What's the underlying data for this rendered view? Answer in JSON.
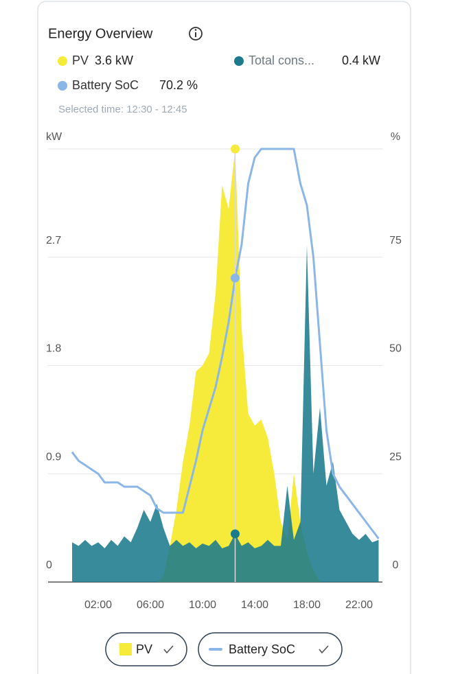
{
  "title": "Energy Overview",
  "selection_label": "Selected time: 12:30 - 12:45",
  "chart_data": {
    "type": "area",
    "y_unit": "kW",
    "y2_unit": "%",
    "x": [
      "00:00",
      "00:30",
      "01:00",
      "01:30",
      "02:00",
      "02:30",
      "03:00",
      "03:30",
      "04:00",
      "04:30",
      "05:00",
      "05:30",
      "06:00",
      "06:30",
      "07:00",
      "07:30",
      "08:00",
      "08:30",
      "09:00",
      "09:30",
      "10:00",
      "10:30",
      "11:00",
      "11:30",
      "12:00",
      "12:30",
      "13:00",
      "13:30",
      "14:00",
      "14:30",
      "15:00",
      "15:30",
      "16:00",
      "16:30",
      "17:00",
      "17:30",
      "18:00",
      "18:30",
      "19:00",
      "19:30",
      "20:00",
      "20:30",
      "21:00",
      "21:30",
      "22:00",
      "22:30",
      "23:00",
      "23:30"
    ],
    "xticks": [
      "02:00",
      "06:00",
      "10:00",
      "14:00",
      "18:00",
      "22:00"
    ],
    "selected_x": "12:30",
    "ylim": [
      0,
      3.6
    ],
    "yticks": [
      0,
      0.9,
      1.8,
      2.7
    ],
    "y2lim": [
      0,
      100
    ],
    "y2ticks": [
      0,
      25,
      50,
      75
    ],
    "grid": true,
    "series": [
      {
        "name": "PV",
        "color": "#f6ea3a",
        "kind": "area",
        "readout": "3.6 kW",
        "toggle": true,
        "values": [
          0,
          0,
          0,
          0,
          0,
          0,
          0,
          0,
          0,
          0,
          0,
          0,
          0,
          0,
          0.05,
          0.3,
          0.6,
          1.0,
          1.3,
          1.75,
          1.8,
          1.9,
          2.4,
          3.3,
          3.1,
          3.6,
          2.1,
          1.4,
          1.3,
          1.35,
          1.2,
          0.9,
          0.5,
          0.35,
          0.9,
          0.5,
          0.25,
          0.1,
          0,
          0,
          0,
          0,
          0,
          0,
          0,
          0,
          0,
          0
        ]
      },
      {
        "name": "Total cons...",
        "color": "#1b7b8d",
        "kind": "area",
        "readout": "0.4 kW",
        "toggle": false,
        "values": [
          0.33,
          0.3,
          0.35,
          0.3,
          0.33,
          0.28,
          0.35,
          0.3,
          0.38,
          0.33,
          0.45,
          0.6,
          0.5,
          0.65,
          0.45,
          0.3,
          0.35,
          0.3,
          0.33,
          0.28,
          0.32,
          0.3,
          0.35,
          0.28,
          0.3,
          0.4,
          0.3,
          0.33,
          0.28,
          0.3,
          0.35,
          0.3,
          0.3,
          0.8,
          0.35,
          0.5,
          2.8,
          0.9,
          1.45,
          0.8,
          1.0,
          0.6,
          0.5,
          0.4,
          0.35,
          0.4,
          0.33,
          0.35
        ]
      },
      {
        "name": "Battery SoC",
        "color": "#8bb6e8",
        "kind": "line",
        "axis": "y2",
        "readout": "70.2 %",
        "toggle": true,
        "values": [
          30,
          28,
          27,
          26,
          25,
          23,
          23,
          23,
          22,
          22,
          22,
          21,
          20,
          17,
          16,
          16,
          16,
          16,
          22,
          28,
          35,
          40,
          45,
          52,
          60,
          70.2,
          78,
          92,
          98,
          100,
          100,
          100,
          100,
          100,
          100,
          92,
          87,
          75,
          55,
          35,
          25,
          22,
          20,
          18,
          16,
          14,
          12,
          10
        ]
      }
    ]
  }
}
